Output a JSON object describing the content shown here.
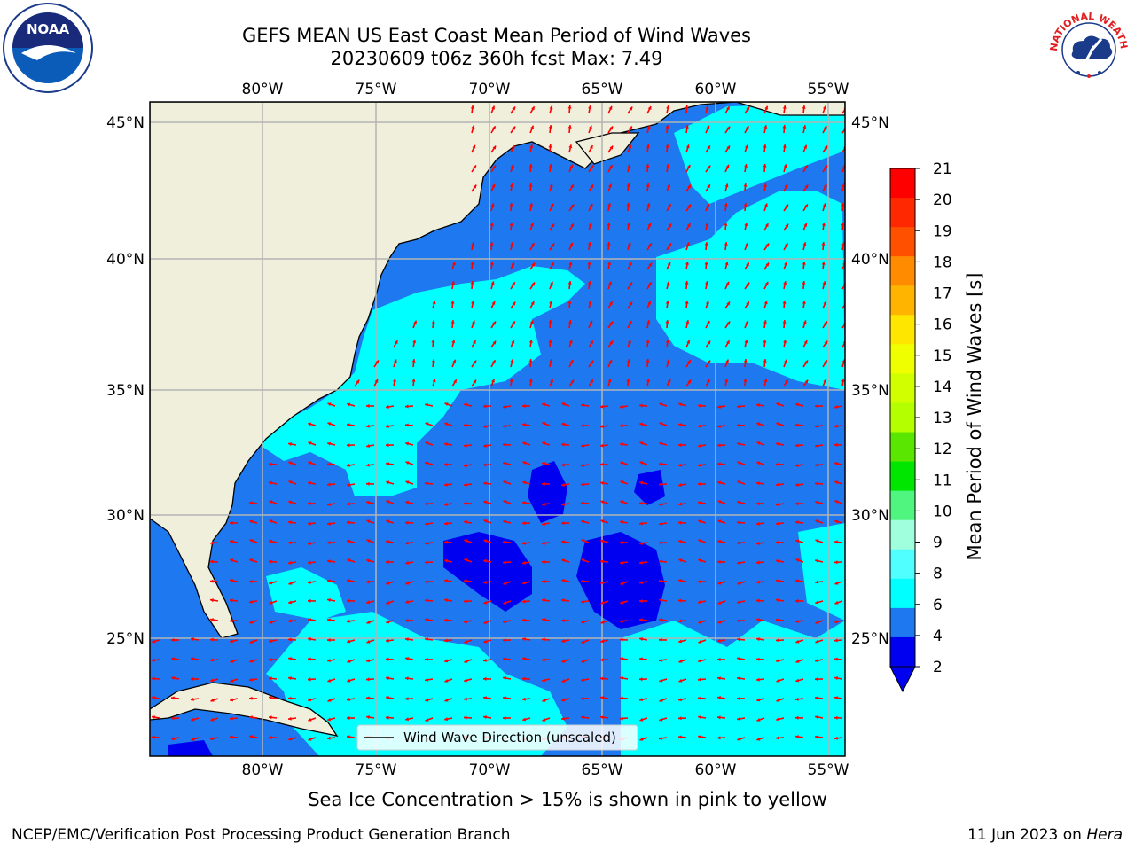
{
  "title": {
    "line1": "GEFS MEAN US East Coast Mean Period of Wind Waves",
    "line2": "20230609 t06z 360h fcst   Max: 7.49"
  },
  "map": {
    "lon_ticks": [
      "80°W",
      "75°W",
      "70°W",
      "65°W",
      "60°W",
      "55°W"
    ],
    "lat_ticks": [
      "45°N",
      "40°N",
      "35°N",
      "30°N",
      "25°N"
    ],
    "legend_label": "Wind Wave Direction (unscaled)",
    "colors": {
      "land": "#efefdc",
      "ocean_low": "#1e78f0",
      "ocean_mid": "#00ffff",
      "ocean_min": "#0000f0",
      "arrow": "#ff0000",
      "grid": "#b4b4b4"
    }
  },
  "colorbar": {
    "label": "Mean Period of Wind Waves [s]",
    "ticks": [
      "21",
      "20",
      "19",
      "18",
      "17",
      "16",
      "15",
      "14",
      "13",
      "12",
      "11",
      "10",
      "9",
      "8",
      "6",
      "4",
      "2"
    ],
    "colors": [
      "#ff0000",
      "#ff2800",
      "#ff5000",
      "#ff8c00",
      "#ffb400",
      "#ffe600",
      "#f0ff00",
      "#d2ff00",
      "#b4ff00",
      "#5ae600",
      "#00e600",
      "#50f580",
      "#a0ffdc",
      "#50ffff",
      "#00ffff",
      "#1e78f0",
      "#0000f0"
    ]
  },
  "footer": {
    "caption": "Sea Ice Concentration > 15% is shown in pink to yellow",
    "left": "NCEP/EMC/Verification Post Processing Product Generation Branch",
    "right_date": "11 Jun 2023 on ",
    "right_host": "Hera"
  },
  "logos": {
    "noaa": "NOAA",
    "nws": "NATIONAL WEATHER SERVICE"
  }
}
